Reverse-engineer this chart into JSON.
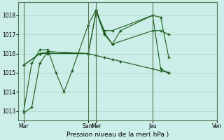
{
  "background_color": "#cceee8",
  "grid_color": "#aaddcc",
  "line_color": "#1a5c1a",
  "marker_color": "#1a5c1a",
  "xlabel": "Pression niveau de la mer( hPa )",
  "ylim": [
    1012.5,
    1018.7
  ],
  "yticks": [
    1013,
    1014,
    1015,
    1016,
    1017,
    1018
  ],
  "xlim": [
    -8,
    216
  ],
  "day_positions": [
    0,
    96,
    108,
    192,
    288
  ],
  "day_labels": [
    "Mar",
    "Sam",
    "Mer",
    "Jeu",
    "Ven"
  ],
  "series": [
    {
      "x": [
        0,
        12,
        24,
        36,
        96,
        108,
        120,
        132,
        192,
        204,
        216
      ],
      "y": [
        1012.9,
        1013.2,
        1015.5,
        1016.1,
        1016.0,
        1018.2,
        1017.0,
        1016.5,
        1017.2,
        1017.2,
        1017.0
      ]
    },
    {
      "x": [
        0,
        12,
        24,
        36,
        48,
        60,
        72,
        96,
        108,
        120,
        132,
        144,
        192,
        204,
        216
      ],
      "y": [
        1013.0,
        1015.5,
        1016.2,
        1016.2,
        1015.0,
        1014.0,
        1015.1,
        1017.5,
        1018.3,
        1017.1,
        1016.5,
        1017.2,
        1018.0,
        1015.2,
        1015.0
      ]
    },
    {
      "x": [
        0,
        24,
        36,
        96,
        108,
        120,
        132,
        192,
        204,
        216
      ],
      "y": [
        1015.4,
        1016.0,
        1016.1,
        1016.0,
        1018.2,
        1017.2,
        1017.2,
        1018.0,
        1017.9,
        1015.8
      ]
    },
    {
      "x": [
        0,
        24,
        36,
        96,
        108,
        120,
        132,
        144,
        192,
        204,
        216
      ],
      "y": [
        1015.4,
        1016.0,
        1016.0,
        1016.0,
        1015.9,
        1015.8,
        1015.7,
        1015.6,
        1015.2,
        1015.1,
        1015.0
      ]
    }
  ]
}
